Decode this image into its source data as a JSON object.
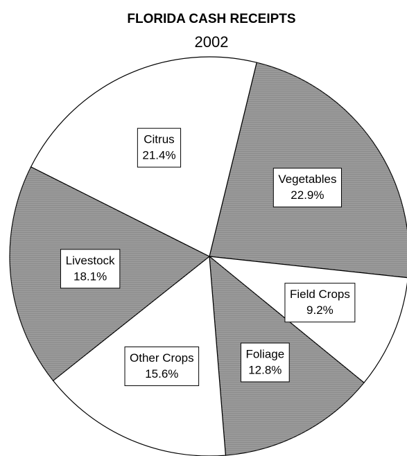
{
  "chart_data": {
    "type": "pie",
    "title": "FLORIDA CASH RECEIPTS",
    "subtitle": "2002",
    "categories": [
      "Vegetables",
      "Field Crops",
      "Foliage",
      "Other Crops",
      "Livestock",
      "Citrus"
    ],
    "values": [
      22.9,
      9.2,
      12.8,
      15.6,
      18.1,
      21.4
    ],
    "value_labels": [
      "22.9%",
      "9.2%",
      "12.8%",
      "15.6%",
      "18.1%",
      "21.4%"
    ],
    "colors": [
      "#8c8c8c",
      "#ffffff",
      "#8c8c8c",
      "#ffffff",
      "#8c8c8c",
      "#ffffff"
    ]
  }
}
